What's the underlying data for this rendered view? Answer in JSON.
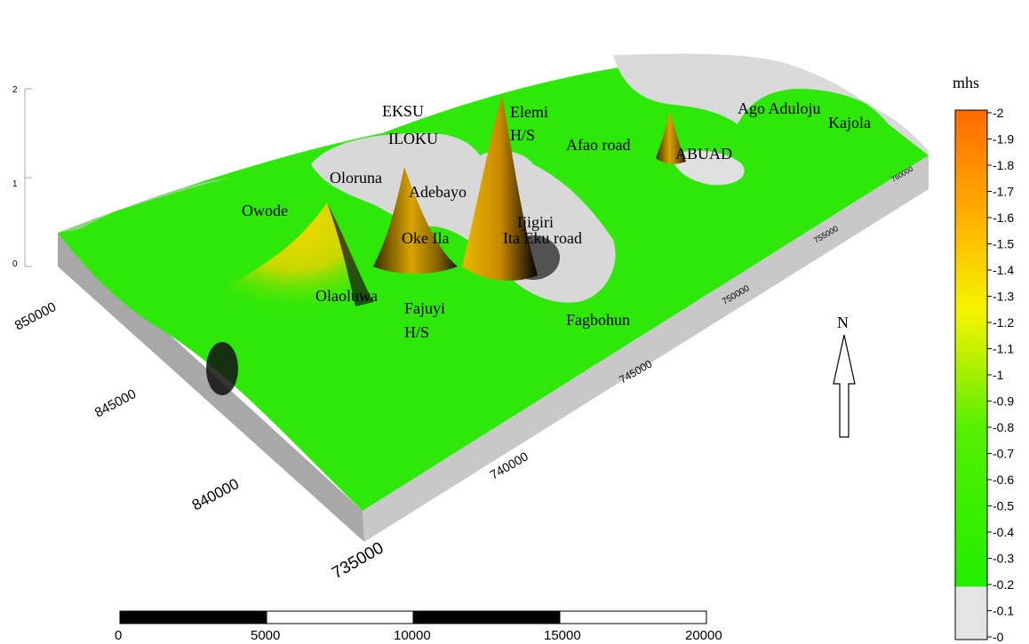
{
  "map": {
    "places": [
      "EKSU",
      "ILOKU",
      "Elemi",
      "H/S",
      "Ago Aduloju",
      "Kajola",
      "Afao road",
      "ABUAD",
      "Oloruna",
      "Adebayo",
      "Owode",
      "Ijigiri",
      "Oke Ila",
      "Ita Eku road",
      "Olaoluwa",
      "Fajuyi",
      "H/S",
      "Fagbohun"
    ],
    "northing_ticks": [
      "850000",
      "845000",
      "840000"
    ],
    "easting_ticks": [
      "735000",
      "740000",
      "745000",
      "750000",
      "755000",
      "760000"
    ],
    "z_ticks": [
      "0",
      "1",
      "2"
    ]
  },
  "north_arrow": {
    "label": "N"
  },
  "colorbar": {
    "unit": "mhs",
    "ticks": [
      "0",
      "0.1",
      "0.2",
      "0.3",
      "0.4",
      "0.5",
      "0.6",
      "0.7",
      "0.8",
      "0.9",
      "1",
      "1.1",
      "1.2",
      "1.3",
      "1.4",
      "1.5",
      "1.6",
      "1.7",
      "1.8",
      "1.9",
      "2"
    ],
    "min": 0,
    "max": 2,
    "colors": {
      "low": "#e4e4e4",
      "green": "#22ee00",
      "yellow": "#f5f500",
      "orange": "#ff6a00"
    }
  },
  "scale_bar": {
    "labels": [
      "0",
      "5000",
      "10000",
      "15000",
      "20000"
    ]
  }
}
